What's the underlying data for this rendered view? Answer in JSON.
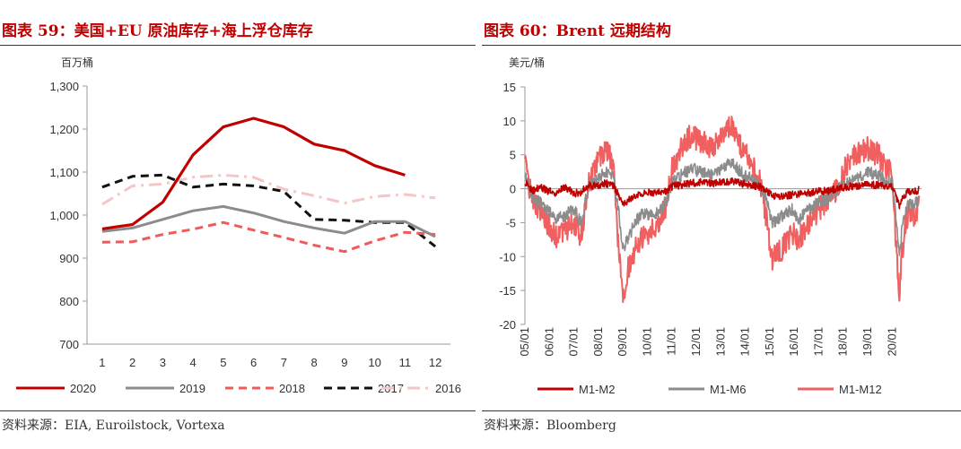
{
  "left_panel": {
    "title": "图表 59：美国+EU 原油库存+海上浮仓库存",
    "source": "资料来源：EIA, Euroilstock, Vortexa"
  },
  "right_panel": {
    "title": "图表 60：Brent 远期结构",
    "source": "资料来源：Bloomberg"
  },
  "chart_data": [
    {
      "type": "line",
      "title": "",
      "ylabel": "百万桶",
      "x": [
        1,
        2,
        3,
        4,
        5,
        6,
        7,
        8,
        9,
        10,
        11,
        12
      ],
      "xlim": [
        0.5,
        12.5
      ],
      "ylim": [
        700,
        1300
      ],
      "yticks": [
        700,
        800,
        900,
        1000,
        1100,
        1200,
        1300
      ],
      "ytick_labels": [
        "700",
        "800",
        "900",
        "1,000",
        "1,100",
        "1,200",
        "1,300"
      ],
      "xtick_labels": [
        "1",
        "2",
        "3",
        "4",
        "5",
        "6",
        "7",
        "8",
        "9",
        "10",
        "11",
        "12"
      ],
      "grid": false,
      "legend_position": "bottom",
      "series": [
        {
          "name": "2020",
          "color": "#c00000",
          "style": "solid",
          "values": [
            968,
            978,
            1030,
            1140,
            1205,
            1225,
            1205,
            1165,
            1150,
            1115,
            1093,
            null
          ]
        },
        {
          "name": "2019",
          "color": "#8c8c8c",
          "style": "solid",
          "values": [
            962,
            970,
            990,
            1010,
            1020,
            1005,
            985,
            970,
            958,
            985,
            985,
            950
          ]
        },
        {
          "name": "2018",
          "color": "#f05a5a",
          "style": "dashed",
          "values": [
            937,
            938,
            955,
            967,
            983,
            965,
            948,
            930,
            915,
            940,
            960,
            955
          ]
        },
        {
          "name": "2017",
          "color": "#111111",
          "style": "dashed",
          "values": [
            1065,
            1090,
            1093,
            1065,
            1072,
            1068,
            1055,
            990,
            988,
            983,
            983,
            927
          ]
        },
        {
          "name": "2016",
          "color": "#f5c6c6",
          "style": "dashdot",
          "values": [
            1025,
            1068,
            1072,
            1088,
            1093,
            1088,
            1060,
            1045,
            1028,
            1043,
            1048,
            1040
          ]
        }
      ]
    },
    {
      "type": "line",
      "title": "",
      "ylabel": "美元/桶",
      "xlim": [
        2005.0,
        2021.2
      ],
      "ylim": [
        -20,
        15
      ],
      "yticks": [
        -20,
        -15,
        -10,
        -5,
        0,
        5,
        10,
        15
      ],
      "ytick_labels": [
        "-20",
        "-15",
        "-10",
        "-5",
        "0",
        "5",
        "10",
        "15"
      ],
      "xtick_values": [
        2005,
        2006,
        2007,
        2008,
        2009,
        2010,
        2011,
        2012,
        2013,
        2014,
        2015,
        2016,
        2017,
        2018,
        2019,
        2020
      ],
      "xtick_labels": [
        "05/01",
        "06/01",
        "07/01",
        "08/01",
        "09/01",
        "10/01",
        "11/01",
        "12/01",
        "13/01",
        "14/01",
        "15/01",
        "16/01",
        "17/01",
        "18/01",
        "19/01",
        "20/01"
      ],
      "grid": false,
      "legend_position": "bottom",
      "series": [
        {
          "name": "M1-M2",
          "color": "#c00000",
          "x": [
            2005.0,
            2005.3,
            2005.6,
            2006.0,
            2006.3,
            2006.6,
            2007.0,
            2007.3,
            2007.6,
            2008.0,
            2008.3,
            2008.6,
            2008.85,
            2009.0,
            2009.2,
            2009.5,
            2009.8,
            2010.1,
            2010.5,
            2010.8,
            2011.0,
            2011.4,
            2011.8,
            2012.2,
            2012.6,
            2013.0,
            2013.4,
            2013.8,
            2014.2,
            2014.6,
            2014.85,
            2015.1,
            2015.5,
            2015.9,
            2016.2,
            2016.6,
            2017.0,
            2017.4,
            2017.8,
            2018.2,
            2018.6,
            2019.0,
            2019.4,
            2019.8,
            2020.0,
            2020.15,
            2020.3,
            2020.4,
            2020.55,
            2020.7,
            2020.9,
            2021.1
          ],
          "values": [
            1.0,
            -0.3,
            0.2,
            -0.4,
            -0.6,
            0.3,
            -0.7,
            -0.5,
            0.5,
            0.4,
            0.8,
            0.5,
            -1.0,
            -2.5,
            -1.8,
            -1.0,
            -0.7,
            -0.5,
            -0.6,
            -0.3,
            0.3,
            0.6,
            0.8,
            1.0,
            0.8,
            0.9,
            1.1,
            0.8,
            0.6,
            0.3,
            -0.3,
            -1.0,
            -1.1,
            -0.9,
            -0.8,
            -0.6,
            -0.4,
            -0.3,
            0.1,
            0.3,
            0.4,
            0.6,
            0.5,
            0.3,
            0.3,
            -1.2,
            -2.5,
            -1.5,
            -0.7,
            -0.4,
            -0.5,
            -0.2
          ]
        },
        {
          "name": "M1-M6",
          "color": "#8c8c8c",
          "x": [
            2005.0,
            2005.3,
            2005.6,
            2006.0,
            2006.3,
            2006.6,
            2007.0,
            2007.3,
            2007.6,
            2008.0,
            2008.3,
            2008.6,
            2008.85,
            2009.0,
            2009.2,
            2009.5,
            2009.8,
            2010.1,
            2010.5,
            2010.8,
            2011.0,
            2011.4,
            2011.8,
            2012.2,
            2012.6,
            2013.0,
            2013.4,
            2013.8,
            2014.2,
            2014.6,
            2014.85,
            2015.1,
            2015.5,
            2015.9,
            2016.2,
            2016.6,
            2017.0,
            2017.4,
            2017.8,
            2018.2,
            2018.6,
            2019.0,
            2019.4,
            2019.8,
            2020.0,
            2020.15,
            2020.3,
            2020.4,
            2020.55,
            2020.7,
            2020.9,
            2021.1
          ],
          "values": [
            2.0,
            -1.5,
            -2.0,
            -3.5,
            -4.5,
            -4.0,
            -3.0,
            -5.0,
            0.5,
            1.5,
            2.5,
            2.0,
            -4.0,
            -9.0,
            -7.5,
            -5.0,
            -3.5,
            -4.0,
            -3.5,
            -1.5,
            0.8,
            2.0,
            3.0,
            2.5,
            2.0,
            3.0,
            4.0,
            2.5,
            1.5,
            0.5,
            -1.5,
            -5.0,
            -4.0,
            -3.0,
            -4.5,
            -3.0,
            -2.0,
            -1.5,
            0.0,
            1.0,
            1.5,
            2.5,
            2.0,
            1.0,
            1.0,
            -4.0,
            -10.0,
            -6.0,
            -3.5,
            -2.0,
            -2.5,
            -1.5
          ]
        },
        {
          "name": "M1-M12",
          "color": "#f06060",
          "x": [
            2005.0,
            2005.3,
            2005.6,
            2006.0,
            2006.3,
            2006.6,
            2007.0,
            2007.3,
            2007.6,
            2008.0,
            2008.3,
            2008.6,
            2008.85,
            2009.0,
            2009.2,
            2009.5,
            2009.8,
            2010.1,
            2010.5,
            2010.8,
            2011.0,
            2011.4,
            2011.8,
            2012.2,
            2012.6,
            2013.0,
            2013.4,
            2013.8,
            2014.2,
            2014.6,
            2014.85,
            2015.1,
            2015.5,
            2015.9,
            2016.2,
            2016.6,
            2017.0,
            2017.4,
            2017.8,
            2018.2,
            2018.6,
            2019.0,
            2019.4,
            2019.8,
            2020.0,
            2020.15,
            2020.3,
            2020.4,
            2020.55,
            2020.7,
            2020.9,
            2021.1
          ],
          "values": [
            3.5,
            -2.0,
            -3.0,
            -5.5,
            -7.5,
            -6.5,
            -5.0,
            -7.0,
            0.5,
            4.0,
            6.0,
            3.5,
            -10.0,
            -16.5,
            -12.0,
            -9.0,
            -7.0,
            -6.5,
            -5.0,
            -2.0,
            3.0,
            6.0,
            8.0,
            7.0,
            6.0,
            7.5,
            9.5,
            6.5,
            4.0,
            1.0,
            -4.0,
            -10.5,
            -9.0,
            -6.5,
            -7.5,
            -5.0,
            -3.0,
            -2.0,
            0.5,
            4.0,
            5.0,
            6.0,
            5.0,
            3.0,
            2.0,
            -8.0,
            -16.0,
            -9.5,
            -5.0,
            -3.0,
            -4.0,
            -2.5
          ]
        }
      ]
    }
  ]
}
